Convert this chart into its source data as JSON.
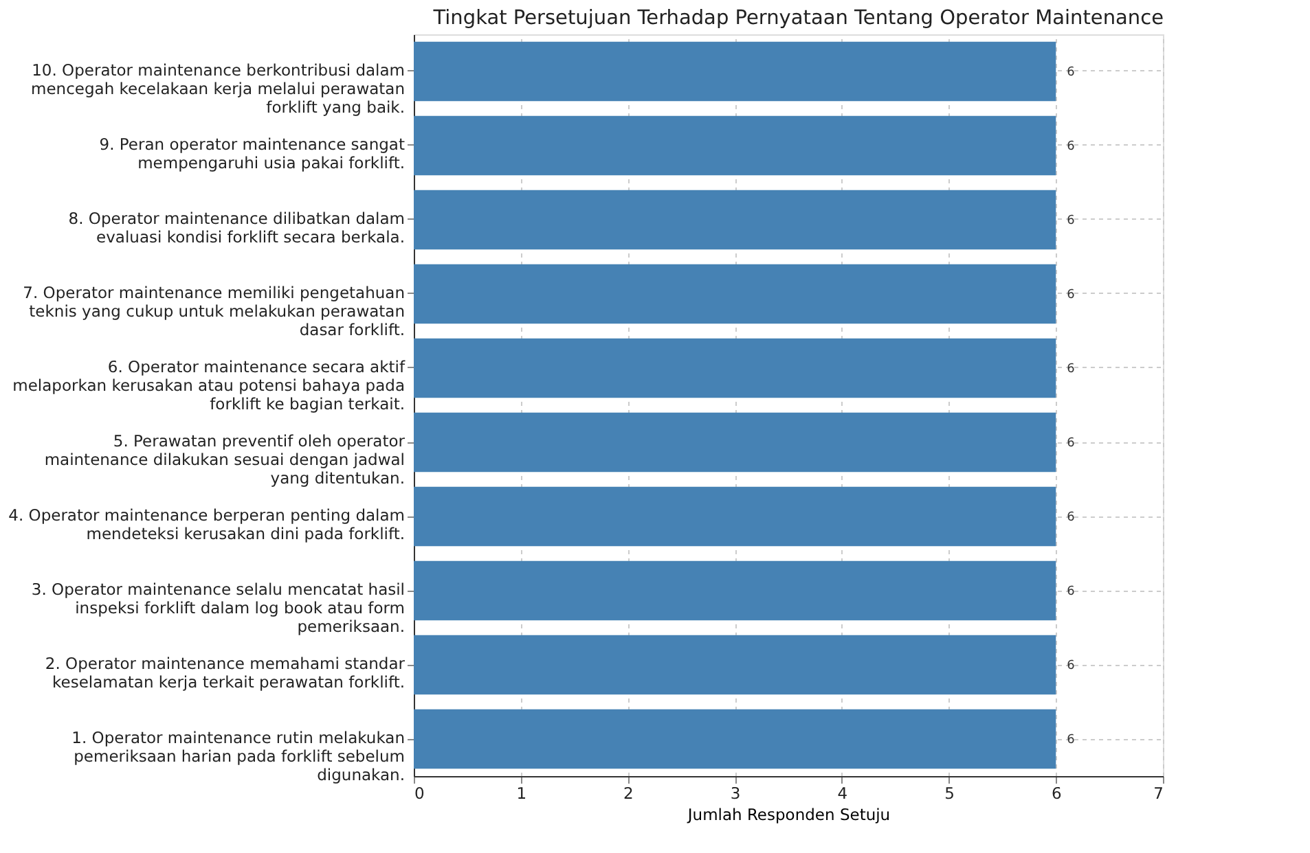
{
  "chart_data": {
    "type": "bar",
    "orientation": "horizontal",
    "title": "Tingkat Persetujuan Terhadap Pernyataan Tentang Operator Maintenance",
    "xlabel": "Jumlah Responden Setuju",
    "categories": [
      "10.  Operator maintenance berkontribusi dalam mencegah kecelakaan kerja melalui perawatan forklift yang baik.",
      "9. Peran operator maintenance sangat mempengaruhi usia pakai forklift.",
      "8. Operator maintenance dilibatkan dalam evaluasi kondisi forklift secara berkala.",
      "7. Operator maintenance memiliki pengetahuan teknis yang cukup untuk melakukan perawatan dasar forklift.",
      "6. Operator maintenance secara aktif melaporkan kerusakan atau potensi bahaya pada forklift ke bagian terkait.",
      "5. Perawatan preventif oleh operator maintenance dilakukan sesuai dengan jadwal yang ditentukan.",
      "4. Operator maintenance berperan penting dalam mendeteksi kerusakan dini pada forklift.",
      "3. Operator maintenance selalu mencatat hasil inspeksi forklift dalam log book atau form pemeriksaan.",
      "2. Operator maintenance memahami standar keselamatan kerja terkait perawatan forklift.",
      "1. Operator maintenance rutin melakukan pemeriksaan harian pada forklift sebelum digunakan."
    ],
    "values": [
      6,
      6,
      6,
      6,
      6,
      6,
      6,
      6,
      6,
      6
    ],
    "color": "#4682b4",
    "data_labels": true,
    "xlim": [
      0,
      7
    ],
    "xticks": [
      0,
      1,
      2,
      3,
      4,
      5,
      6,
      7
    ],
    "grid": true
  }
}
